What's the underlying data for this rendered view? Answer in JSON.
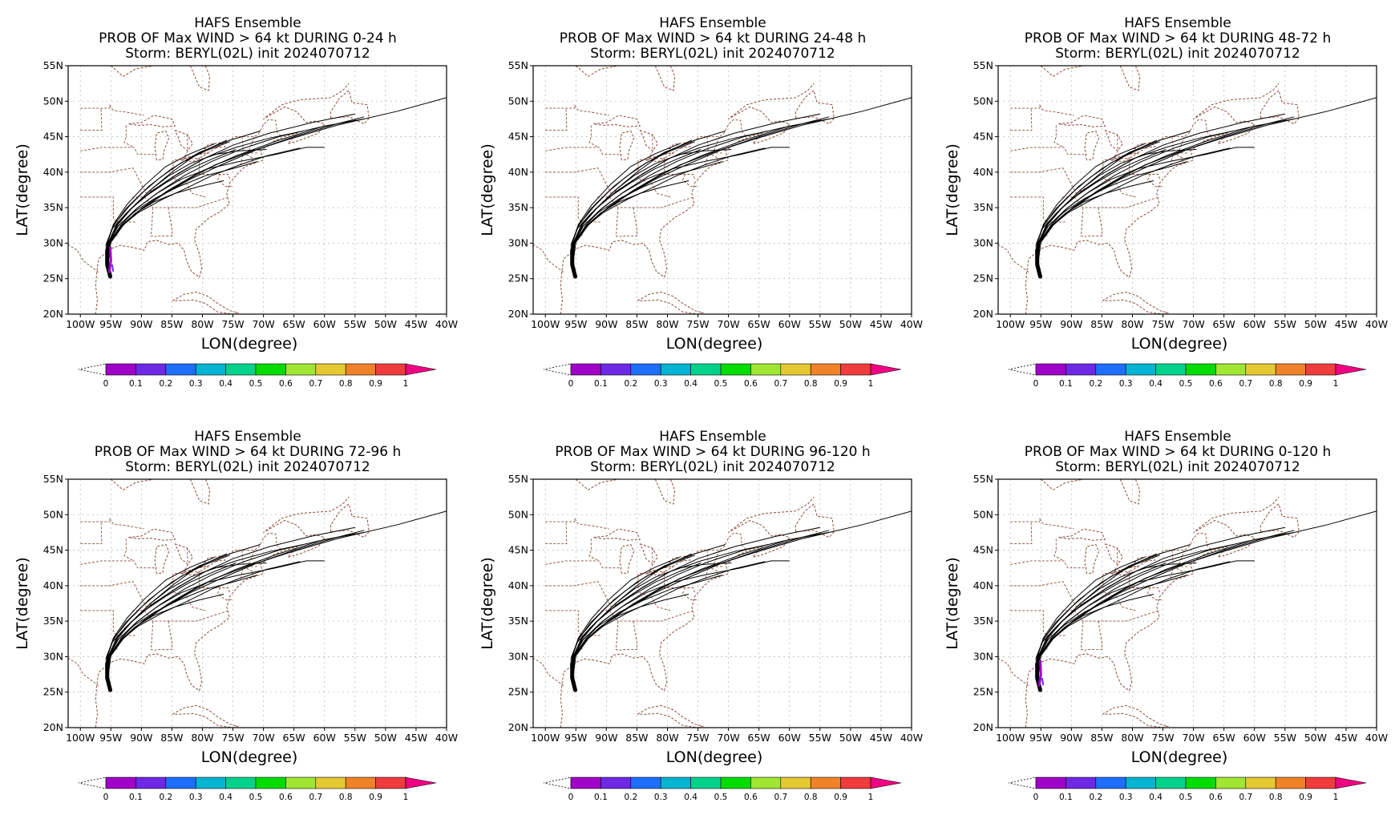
{
  "common": {
    "line1": "HAFS Ensemble",
    "line3": "Storm: BERYL(02L) init 2024070712",
    "xlabel": "LON(degree)",
    "ylabel": "LAT(degree)",
    "lat_ticks": [
      "20N",
      "25N",
      "30N",
      "35N",
      "40N",
      "45N",
      "50N",
      "55N"
    ],
    "lon_ticks": [
      "100W",
      "95W",
      "90W",
      "85W",
      "80W",
      "75W",
      "70W",
      "65W",
      "60W",
      "55W",
      "50W",
      "45W",
      "40W"
    ],
    "colorbar_labels": [
      "0",
      "0.1",
      "0.2",
      "0.3",
      "0.4",
      "0.5",
      "0.6",
      "0.7",
      "0.8",
      "0.9",
      "1"
    ],
    "colorbar_colors": [
      "#a000c8",
      "#6e28e6",
      "#1e6eff",
      "#00b4d2",
      "#00d28c",
      "#00dc00",
      "#a0e632",
      "#e6c832",
      "#f08228",
      "#f03c3c",
      "#f00082"
    ],
    "map_colors": {
      "coast": "#8b4a3c",
      "track": "#000000",
      "grid": "#bbbbbb"
    }
  },
  "panels": [
    {
      "line2": "PROB OF Max WIND > 64 kt DURING  0-24 h",
      "prob_blob": true
    },
    {
      "line2": "PROB OF Max WIND > 64 kt DURING 24-48 h",
      "prob_blob": false
    },
    {
      "line2": "PROB OF Max WIND > 64 kt DURING 48-72 h",
      "prob_blob": false
    },
    {
      "line2": "PROB OF Max WIND > 64 kt DURING 72-96 h",
      "prob_blob": false
    },
    {
      "line2": "PROB OF Max WIND > 64 kt DURING 96-120 h",
      "prob_blob": false
    },
    {
      "line2": "PROB OF Max WIND > 64 kt DURING 0-120 h",
      "prob_blob": true
    }
  ],
  "chart_data": {
    "type": "map",
    "lon_range": [
      -102,
      -40
    ],
    "lat_range": [
      20,
      55
    ],
    "grid": true,
    "tracks": [
      [
        [
          -95.1,
          25.3
        ],
        [
          -95.6,
          27.5
        ],
        [
          -95.5,
          30.0
        ],
        [
          -94.0,
          32.5
        ],
        [
          -91.5,
          35.0
        ],
        [
          -88.5,
          37.5
        ],
        [
          -85.0,
          40.0
        ],
        [
          -81.0,
          42.5
        ],
        [
          -76.0,
          44.5
        ]
      ],
      [
        [
          -95.1,
          25.3
        ],
        [
          -95.5,
          27.5
        ],
        [
          -95.2,
          30.0
        ],
        [
          -93.5,
          32.3
        ],
        [
          -90.5,
          34.5
        ],
        [
          -86.5,
          36.8
        ],
        [
          -82.0,
          39.0
        ],
        [
          -77.0,
          41.0
        ],
        [
          -71.0,
          43.2
        ],
        [
          -65.0,
          45.0
        ],
        [
          -58.0,
          46.8
        ],
        [
          -53.5,
          47.8
        ]
      ],
      [
        [
          -95.1,
          25.3
        ],
        [
          -95.7,
          27.4
        ],
        [
          -95.8,
          29.8
        ],
        [
          -94.8,
          32.0
        ],
        [
          -92.5,
          34.2
        ],
        [
          -89.5,
          36.5
        ],
        [
          -86.0,
          38.5
        ],
        [
          -82.0,
          40.5
        ],
        [
          -78.0,
          42.0
        ],
        [
          -74.5,
          43.2
        ]
      ],
      [
        [
          -95.1,
          25.3
        ],
        [
          -95.4,
          27.5
        ],
        [
          -95.0,
          30.1
        ],
        [
          -93.0,
          32.5
        ],
        [
          -89.8,
          35.0
        ],
        [
          -85.5,
          37.5
        ],
        [
          -80.5,
          40.0
        ],
        [
          -74.5,
          42.3
        ],
        [
          -67.5,
          44.5
        ],
        [
          -60.0,
          46.5
        ],
        [
          -53.5,
          47.5
        ]
      ],
      [
        [
          -95.1,
          25.3
        ],
        [
          -95.6,
          27.6
        ],
        [
          -95.6,
          30.1
        ],
        [
          -94.5,
          32.6
        ],
        [
          -92.0,
          35.2
        ],
        [
          -88.8,
          38.0
        ],
        [
          -85.0,
          40.5
        ],
        [
          -80.5,
          42.8
        ],
        [
          -75.5,
          44.5
        ],
        [
          -70.5,
          45.8
        ]
      ],
      [
        [
          -95.1,
          25.3
        ],
        [
          -95.5,
          27.5
        ],
        [
          -95.3,
          30.0
        ],
        [
          -93.8,
          32.4
        ],
        [
          -91.0,
          34.7
        ],
        [
          -87.5,
          37.0
        ],
        [
          -83.5,
          39.0
        ],
        [
          -79.0,
          40.5
        ],
        [
          -74.0,
          41.5
        ],
        [
          -68.0,
          42.5
        ],
        [
          -63.0,
          43.5
        ],
        [
          -60.0,
          43.5
        ]
      ],
      [
        [
          -95.1,
          25.3
        ],
        [
          -95.5,
          27.5
        ],
        [
          -95.4,
          30.0
        ],
        [
          -94.2,
          32.4
        ],
        [
          -91.8,
          34.8
        ],
        [
          -88.5,
          37.2
        ],
        [
          -84.5,
          39.5
        ],
        [
          -80.0,
          41.8
        ],
        [
          -75.0,
          43.8
        ],
        [
          -69.0,
          45.5
        ],
        [
          -62.0,
          47.0
        ],
        [
          -55.0,
          48.2
        ]
      ],
      [
        [
          -95.1,
          25.3
        ],
        [
          -95.6,
          27.5
        ],
        [
          -95.3,
          30.0
        ],
        [
          -93.5,
          32.2
        ],
        [
          -90.5,
          34.3
        ],
        [
          -86.5,
          36.2
        ],
        [
          -82.5,
          37.8
        ],
        [
          -78.5,
          39.5
        ],
        [
          -74.0,
          41.0
        ],
        [
          -69.5,
          42.3
        ],
        [
          -64.0,
          43.4
        ]
      ],
      [
        [
          -95.1,
          25.3
        ],
        [
          -95.6,
          27.5
        ],
        [
          -95.6,
          30.0
        ],
        [
          -94.6,
          32.6
        ],
        [
          -92.4,
          35.4
        ],
        [
          -89.4,
          38.2
        ],
        [
          -86.0,
          40.8
        ],
        [
          -82.0,
          42.6
        ],
        [
          -78.0,
          44.0
        ]
      ],
      [
        [
          -95.1,
          25.3
        ],
        [
          -95.5,
          27.5
        ],
        [
          -95.2,
          30.0
        ],
        [
          -93.3,
          32.3
        ],
        [
          -90.3,
          34.6
        ],
        [
          -86.6,
          36.8
        ],
        [
          -82.5,
          38.9
        ],
        [
          -78.0,
          41.0
        ],
        [
          -72.5,
          42.8
        ],
        [
          -66.0,
          44.6
        ],
        [
          -58.0,
          46.6
        ],
        [
          -48.0,
          48.6
        ],
        [
          -40.0,
          50.5
        ]
      ],
      [
        [
          -95.1,
          25.3
        ],
        [
          -95.6,
          27.5
        ],
        [
          -95.5,
          30.0
        ],
        [
          -94.0,
          32.5
        ],
        [
          -91.5,
          35.0
        ],
        [
          -88.5,
          37.5
        ],
        [
          -85.5,
          39.5
        ],
        [
          -82.0,
          41.2
        ],
        [
          -78.0,
          42.5
        ],
        [
          -74.0,
          43.0
        ],
        [
          -69.5,
          43.2
        ]
      ],
      [
        [
          -95.1,
          25.3
        ],
        [
          -95.5,
          27.5
        ],
        [
          -95.4,
          30.0
        ],
        [
          -94.0,
          32.3
        ],
        [
          -91.2,
          34.4
        ],
        [
          -87.8,
          36.3
        ],
        [
          -83.8,
          38.0
        ],
        [
          -79.5,
          39.5
        ],
        [
          -75.0,
          40.5
        ],
        [
          -71.0,
          41.5
        ]
      ],
      [
        [
          -95.1,
          25.3
        ],
        [
          -95.6,
          27.5
        ],
        [
          -95.6,
          30.0
        ],
        [
          -94.6,
          32.4
        ],
        [
          -92.6,
          34.8
        ],
        [
          -90.0,
          37.0
        ],
        [
          -87.0,
          39.2
        ],
        [
          -83.5,
          41.3
        ],
        [
          -79.5,
          43.0
        ],
        [
          -75.5,
          44.3
        ]
      ],
      [
        [
          -95.1,
          25.3
        ],
        [
          -95.5,
          27.5
        ],
        [
          -95.2,
          30.0
        ],
        [
          -93.4,
          32.5
        ],
        [
          -90.6,
          35.0
        ],
        [
          -87.0,
          37.3
        ],
        [
          -83.0,
          39.5
        ],
        [
          -78.5,
          41.5
        ],
        [
          -73.5,
          43.3
        ],
        [
          -67.5,
          45.0
        ],
        [
          -61.0,
          46.3
        ],
        [
          -55.0,
          47.3
        ]
      ],
      [
        [
          -95.1,
          25.3
        ],
        [
          -95.6,
          27.5
        ],
        [
          -95.4,
          30.0
        ],
        [
          -94.0,
          32.5
        ],
        [
          -91.5,
          35.0
        ],
        [
          -88.0,
          37.5
        ],
        [
          -84.0,
          39.8
        ],
        [
          -79.5,
          42.0
        ],
        [
          -74.5,
          43.5
        ],
        [
          -69.0,
          44.8
        ],
        [
          -63.5,
          45.8
        ]
      ],
      [
        [
          -95.1,
          25.3
        ],
        [
          -95.5,
          27.5
        ],
        [
          -95.3,
          30.0
        ],
        [
          -93.6,
          32.2
        ],
        [
          -91.0,
          34.2
        ],
        [
          -88.0,
          35.8
        ],
        [
          -84.5,
          37.0
        ],
        [
          -80.5,
          38.0
        ],
        [
          -76.5,
          38.8
        ]
      ]
    ]
  }
}
